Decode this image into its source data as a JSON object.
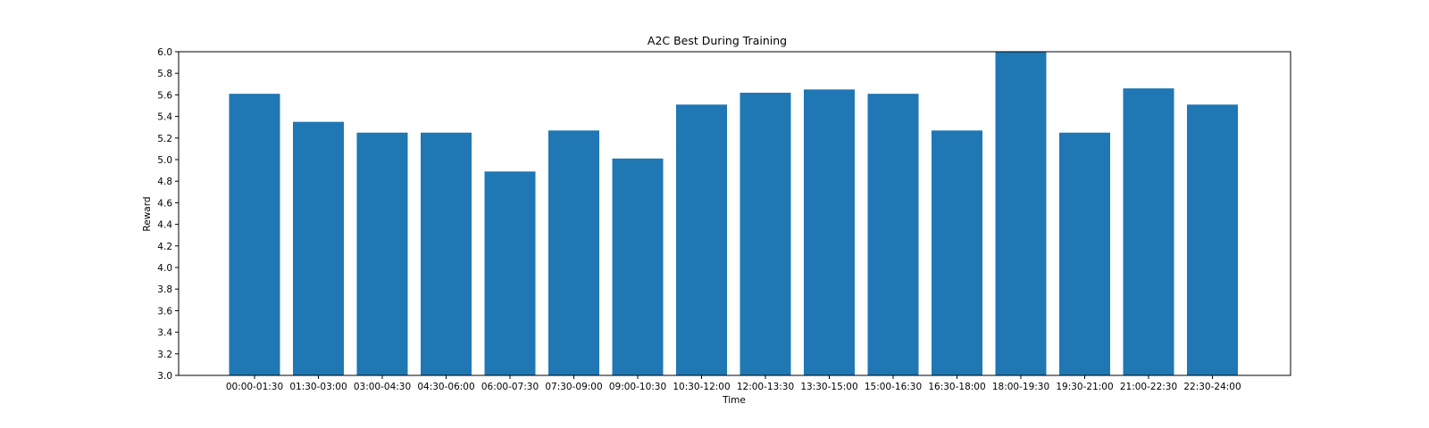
{
  "chart_data": {
    "type": "bar",
    "title": "A2C Best During Training",
    "xlabel": "Time",
    "ylabel": "Reward",
    "categories": [
      "00:00-01:30",
      "01:30-03:00",
      "03:00-04:30",
      "04:30-06:00",
      "06:00-07:30",
      "07:30-09:00",
      "09:00-10:30",
      "10:30-12:00",
      "12:00-13:30",
      "13:30-15:00",
      "15:00-16:30",
      "16:30-18:00",
      "18:00-19:30",
      "19:30-21:00",
      "21:00-22:30",
      "22:30-24:00"
    ],
    "values": [
      5.61,
      5.35,
      5.25,
      5.25,
      4.89,
      5.27,
      5.01,
      5.51,
      5.62,
      5.65,
      5.61,
      5.27,
      6.0,
      5.25,
      5.66,
      5.51
    ],
    "ylim": [
      3.0,
      6.0
    ],
    "yticks": [
      "3.0",
      "3.2",
      "3.4",
      "3.6",
      "3.8",
      "4.0",
      "4.2",
      "4.4",
      "4.6",
      "4.8",
      "5.0",
      "5.2",
      "5.4",
      "5.6",
      "5.8",
      "6.0"
    ],
    "bar_color": "#1f77b4",
    "grid": false,
    "legend": "none"
  }
}
